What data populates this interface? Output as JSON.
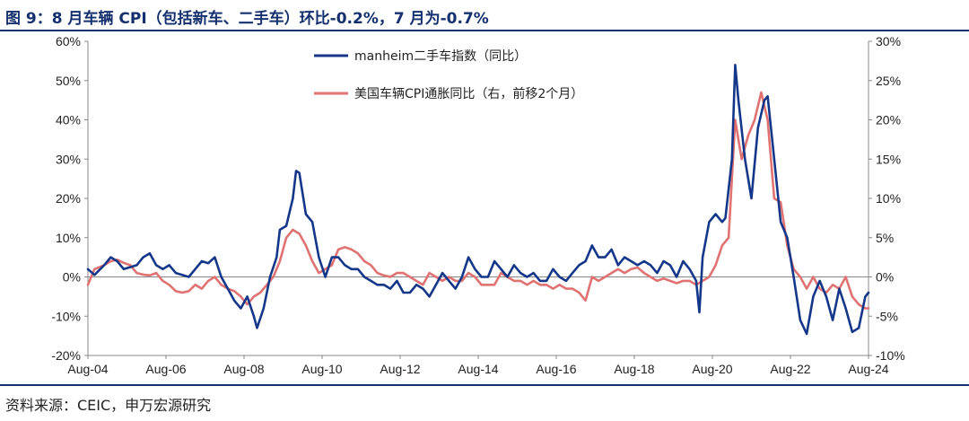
{
  "page": {
    "title": "图 9：8 月车辆 CPI（包括新车、二手车）环比-0.2%，7 月为-0.7%",
    "source": "资料来源：CEIC，申万宏源研究"
  },
  "chart_data": {
    "type": "line",
    "x_ticks": [
      "Aug-04",
      "Aug-06",
      "Aug-08",
      "Aug-10",
      "Aug-12",
      "Aug-14",
      "Aug-16",
      "Aug-18",
      "Aug-20",
      "Aug-22",
      "Aug-24"
    ],
    "x_range": [
      "2004-08",
      "2024-08"
    ],
    "y_left": {
      "ticks": [
        "-20%",
        "-10%",
        "0%",
        "10%",
        "20%",
        "30%",
        "40%",
        "50%",
        "60%"
      ],
      "min": -20,
      "max": 60
    },
    "y_right": {
      "ticks": [
        "-10%",
        "-5%",
        "0%",
        "5%",
        "10%",
        "15%",
        "20%",
        "25%",
        "30%"
      ],
      "min": -10,
      "max": 30
    },
    "legend_position": "top-center",
    "grid": false,
    "series": [
      {
        "name": "manheim二手车指数（同比）",
        "axis": "left",
        "color": "#14378a",
        "points": [
          [
            "2004-08",
            2
          ],
          [
            "2004-10",
            0.5
          ],
          [
            "2005-01",
            3
          ],
          [
            "2005-03",
            5
          ],
          [
            "2005-05",
            4
          ],
          [
            "2005-07",
            2
          ],
          [
            "2005-09",
            2.5
          ],
          [
            "2005-11",
            3
          ],
          [
            "2006-01",
            5
          ],
          [
            "2006-03",
            6
          ],
          [
            "2006-05",
            3
          ],
          [
            "2006-07",
            2
          ],
          [
            "2006-09",
            3
          ],
          [
            "2006-11",
            1
          ],
          [
            "2007-01",
            0.5
          ],
          [
            "2007-03",
            0
          ],
          [
            "2007-05",
            2
          ],
          [
            "2007-07",
            4
          ],
          [
            "2007-09",
            3.5
          ],
          [
            "2007-11",
            5
          ],
          [
            "2008-01",
            0
          ],
          [
            "2008-03",
            -3
          ],
          [
            "2008-05",
            -6
          ],
          [
            "2008-07",
            -8
          ],
          [
            "2008-09",
            -5
          ],
          [
            "2008-11",
            -10
          ],
          [
            "2008-12",
            -13
          ],
          [
            "2009-02",
            -8
          ],
          [
            "2009-04",
            0
          ],
          [
            "2009-06",
            5
          ],
          [
            "2009-07",
            12
          ],
          [
            "2009-09",
            13
          ],
          [
            "2009-11",
            20
          ],
          [
            "2009-12",
            27
          ],
          [
            "2010-01",
            26.5
          ],
          [
            "2010-03",
            16
          ],
          [
            "2010-05",
            14
          ],
          [
            "2010-07",
            5
          ],
          [
            "2010-09",
            0
          ],
          [
            "2010-11",
            5
          ],
          [
            "2011-01",
            5
          ],
          [
            "2011-03",
            3
          ],
          [
            "2011-05",
            2
          ],
          [
            "2011-07",
            2
          ],
          [
            "2011-09",
            0
          ],
          [
            "2011-11",
            -1
          ],
          [
            "2012-01",
            -2
          ],
          [
            "2012-03",
            -2
          ],
          [
            "2012-05",
            -3
          ],
          [
            "2012-07",
            -1
          ],
          [
            "2012-09",
            -4
          ],
          [
            "2012-11",
            -4
          ],
          [
            "2013-01",
            -2
          ],
          [
            "2013-03",
            -3
          ],
          [
            "2013-05",
            -5
          ],
          [
            "2013-07",
            -2
          ],
          [
            "2013-09",
            1
          ],
          [
            "2013-11",
            -1
          ],
          [
            "2014-01",
            -3
          ],
          [
            "2014-03",
            0
          ],
          [
            "2014-05",
            5
          ],
          [
            "2014-07",
            2
          ],
          [
            "2014-09",
            0
          ],
          [
            "2014-11",
            0
          ],
          [
            "2015-01",
            4
          ],
          [
            "2015-03",
            2
          ],
          [
            "2015-05",
            0
          ],
          [
            "2015-07",
            3
          ],
          [
            "2015-09",
            1
          ],
          [
            "2015-11",
            0
          ],
          [
            "2016-01",
            1
          ],
          [
            "2016-03",
            -1
          ],
          [
            "2016-05",
            -1
          ],
          [
            "2016-07",
            2
          ],
          [
            "2016-09",
            0
          ],
          [
            "2016-11",
            -1
          ],
          [
            "2017-01",
            1
          ],
          [
            "2017-03",
            3
          ],
          [
            "2017-05",
            4
          ],
          [
            "2017-07",
            8
          ],
          [
            "2017-09",
            5
          ],
          [
            "2017-11",
            5
          ],
          [
            "2018-01",
            7
          ],
          [
            "2018-03",
            3
          ],
          [
            "2018-05",
            5
          ],
          [
            "2018-07",
            4
          ],
          [
            "2018-09",
            3
          ],
          [
            "2018-11",
            4
          ],
          [
            "2019-01",
            3
          ],
          [
            "2019-03",
            1
          ],
          [
            "2019-05",
            4
          ],
          [
            "2019-07",
            3
          ],
          [
            "2019-09",
            0
          ],
          [
            "2019-11",
            4
          ],
          [
            "2020-01",
            2
          ],
          [
            "2020-03",
            -1
          ],
          [
            "2020-04",
            -9
          ],
          [
            "2020-05",
            5
          ],
          [
            "2020-07",
            14
          ],
          [
            "2020-09",
            16
          ],
          [
            "2020-11",
            14
          ],
          [
            "2020-12",
            15
          ],
          [
            "2021-02",
            30
          ],
          [
            "2021-03",
            54
          ],
          [
            "2021-04",
            45
          ],
          [
            "2021-06",
            30
          ],
          [
            "2021-08",
            20
          ],
          [
            "2021-10",
            38
          ],
          [
            "2021-12",
            45
          ],
          [
            "2022-01",
            46
          ],
          [
            "2022-03",
            30
          ],
          [
            "2022-05",
            14
          ],
          [
            "2022-07",
            10
          ],
          [
            "2022-09",
            0
          ],
          [
            "2022-11",
            -11
          ],
          [
            "2023-01",
            -14.5
          ],
          [
            "2023-03",
            -5
          ],
          [
            "2023-05",
            -1
          ],
          [
            "2023-07",
            -5
          ],
          [
            "2023-09",
            -11
          ],
          [
            "2023-11",
            -3
          ],
          [
            "2024-01",
            -8
          ],
          [
            "2024-03",
            -14
          ],
          [
            "2024-05",
            -13
          ],
          [
            "2024-07",
            -5
          ],
          [
            "2024-08",
            -4
          ]
        ]
      },
      {
        "name": "美国车辆CPI通胀同比（右，前移2个月）",
        "axis": "right",
        "color": "#e07272",
        "points": [
          [
            "2004-08",
            -1
          ],
          [
            "2004-10",
            1
          ],
          [
            "2005-01",
            1.5
          ],
          [
            "2005-03",
            2
          ],
          [
            "2005-05",
            2.2
          ],
          [
            "2005-07",
            1.8
          ],
          [
            "2005-09",
            1.5
          ],
          [
            "2005-11",
            0.5
          ],
          [
            "2006-01",
            0.3
          ],
          [
            "2006-03",
            0.2
          ],
          [
            "2006-05",
            0.5
          ],
          [
            "2006-07",
            -0.5
          ],
          [
            "2006-09",
            -1
          ],
          [
            "2006-11",
            -1.8
          ],
          [
            "2007-01",
            -2
          ],
          [
            "2007-03",
            -1.8
          ],
          [
            "2007-05",
            -1
          ],
          [
            "2007-07",
            -1.5
          ],
          [
            "2007-09",
            -0.5
          ],
          [
            "2007-11",
            0
          ],
          [
            "2008-01",
            -1
          ],
          [
            "2008-03",
            -1.5
          ],
          [
            "2008-05",
            -1.8
          ],
          [
            "2008-07",
            -2.5
          ],
          [
            "2008-09",
            -3.5
          ],
          [
            "2008-11",
            -2.5
          ],
          [
            "2009-01",
            -2
          ],
          [
            "2009-03",
            -1
          ],
          [
            "2009-05",
            0
          ],
          [
            "2009-07",
            2
          ],
          [
            "2009-09",
            5
          ],
          [
            "2009-11",
            6
          ],
          [
            "2010-01",
            5.5
          ],
          [
            "2010-03",
            4
          ],
          [
            "2010-05",
            2
          ],
          [
            "2010-07",
            0.5
          ],
          [
            "2010-09",
            1
          ],
          [
            "2010-11",
            1.5
          ],
          [
            "2011-01",
            3.5
          ],
          [
            "2011-03",
            3.8
          ],
          [
            "2011-05",
            3.5
          ],
          [
            "2011-07",
            3
          ],
          [
            "2011-09",
            2
          ],
          [
            "2011-11",
            1.5
          ],
          [
            "2012-01",
            0.5
          ],
          [
            "2012-03",
            0.2
          ],
          [
            "2012-05",
            0
          ],
          [
            "2012-07",
            0.5
          ],
          [
            "2012-09",
            0.5
          ],
          [
            "2012-11",
            0
          ],
          [
            "2013-01",
            -0.5
          ],
          [
            "2013-03",
            -1
          ],
          [
            "2013-05",
            0.5
          ],
          [
            "2013-07",
            0
          ],
          [
            "2013-09",
            -0.5
          ],
          [
            "2013-11",
            0
          ],
          [
            "2014-01",
            -0.5
          ],
          [
            "2014-03",
            -0.5
          ],
          [
            "2014-05",
            0.5
          ],
          [
            "2014-07",
            0
          ],
          [
            "2014-09",
            -1
          ],
          [
            "2014-11",
            -1
          ],
          [
            "2015-01",
            -1
          ],
          [
            "2015-03",
            0.5
          ],
          [
            "2015-05",
            0
          ],
          [
            "2015-07",
            -0.5
          ],
          [
            "2015-09",
            -0.5
          ],
          [
            "2015-11",
            -1
          ],
          [
            "2016-01",
            -0.5
          ],
          [
            "2016-03",
            -1
          ],
          [
            "2016-05",
            -1
          ],
          [
            "2016-07",
            -1.5
          ],
          [
            "2016-09",
            -1
          ],
          [
            "2016-11",
            -1.5
          ],
          [
            "2017-01",
            -1.5
          ],
          [
            "2017-03",
            -2
          ],
          [
            "2017-05",
            -3
          ],
          [
            "2017-07",
            0
          ],
          [
            "2017-09",
            -0.5
          ],
          [
            "2017-11",
            0
          ],
          [
            "2018-01",
            0.5
          ],
          [
            "2018-03",
            1
          ],
          [
            "2018-05",
            0.5
          ],
          [
            "2018-07",
            1
          ],
          [
            "2018-09",
            1.2
          ],
          [
            "2018-11",
            0.5
          ],
          [
            "2019-01",
            0
          ],
          [
            "2019-03",
            -0.5
          ],
          [
            "2019-05",
            -0.2
          ],
          [
            "2019-07",
            -0.5
          ],
          [
            "2019-09",
            -0.8
          ],
          [
            "2019-11",
            -0.5
          ],
          [
            "2020-01",
            -0.5
          ],
          [
            "2020-03",
            -1
          ],
          [
            "2020-05",
            -0.5
          ],
          [
            "2020-07",
            0
          ],
          [
            "2020-09",
            1.5
          ],
          [
            "2020-11",
            4
          ],
          [
            "2021-01",
            5
          ],
          [
            "2021-03",
            20
          ],
          [
            "2021-05",
            15
          ],
          [
            "2021-07",
            18
          ],
          [
            "2021-09",
            20
          ],
          [
            "2021-11",
            23.5
          ],
          [
            "2022-01",
            20
          ],
          [
            "2022-03",
            10
          ],
          [
            "2022-05",
            9.5
          ],
          [
            "2022-07",
            4
          ],
          [
            "2022-09",
            1
          ],
          [
            "2022-11",
            0
          ],
          [
            "2023-01",
            -1.5
          ],
          [
            "2023-03",
            0
          ],
          [
            "2023-05",
            -1.5
          ],
          [
            "2023-07",
            -2
          ],
          [
            "2023-09",
            -1
          ],
          [
            "2023-11",
            -1.5
          ],
          [
            "2024-01",
            0
          ],
          [
            "2024-03",
            -2.5
          ],
          [
            "2024-05",
            -3.5
          ],
          [
            "2024-07",
            -4
          ],
          [
            "2024-08",
            -4
          ]
        ]
      }
    ]
  }
}
